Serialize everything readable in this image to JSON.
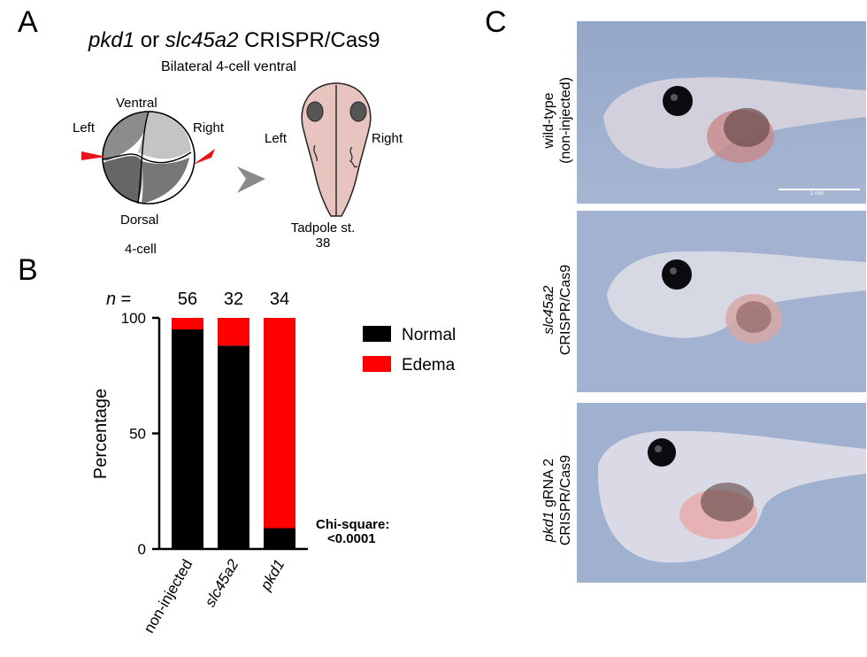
{
  "panels": {
    "a": "A",
    "b": "B",
    "c": "C"
  },
  "panel_a": {
    "title_gene1": "pkd1",
    "title_or": " or ",
    "title_gene2": "slc45a2",
    "title_rest": " CRISPR/Cas9",
    "subtitle": "Bilateral 4-cell ventral",
    "embryo_ventral": "Ventral",
    "embryo_dorsal": "Dorsal",
    "embryo_left": "Left",
    "embryo_right": "Right",
    "embryo_stage": "4-cell",
    "tadpole_left": "Left",
    "tadpole_right": "Right",
    "tadpole_stage_line1": "Tadpole st.",
    "tadpole_stage_line2": "38",
    "colors": {
      "injection_arrow": "#e8141c",
      "embryo_dark": "#707070",
      "embryo_light": "#c4c4c4",
      "tadpole_fill": "#e8c4bf",
      "arrowhead": "#8a8a8a"
    }
  },
  "chart_data": {
    "type": "bar",
    "stacked": true,
    "categories": [
      "non-injected",
      "slc45a2",
      "pkd1"
    ],
    "n_label": "n",
    "n_eq": " =",
    "n": [
      "56",
      "32",
      "34"
    ],
    "series": [
      {
        "name": "Normal",
        "color": "#000000",
        "values": [
          95,
          88,
          9
        ]
      },
      {
        "name": "Edema",
        "color": "#ff0000",
        "values": [
          5,
          12,
          91
        ]
      }
    ],
    "ylabel": "Percentage",
    "ylim": [
      0,
      100
    ],
    "yticks": [
      "0",
      "50",
      "100"
    ],
    "ytick_values": [
      0,
      50,
      100
    ],
    "legend_position": "right",
    "grid": false,
    "annotation_line1": "Chi-square:",
    "annotation_line2": "<0.0001"
  },
  "panel_c": {
    "rows": [
      {
        "label_plain_1": "wild-type",
        "label_plain_2": "(non-injected)"
      },
      {
        "label_italic": "slc45a2",
        "label_plain_2": "CRISPR/Cas9"
      },
      {
        "label_italic": "pkd1",
        "label_plain_1_suffix": " gRNA 2",
        "label_plain_2": "CRISPR/Cas9"
      }
    ],
    "scale_bar": "1 mm"
  }
}
